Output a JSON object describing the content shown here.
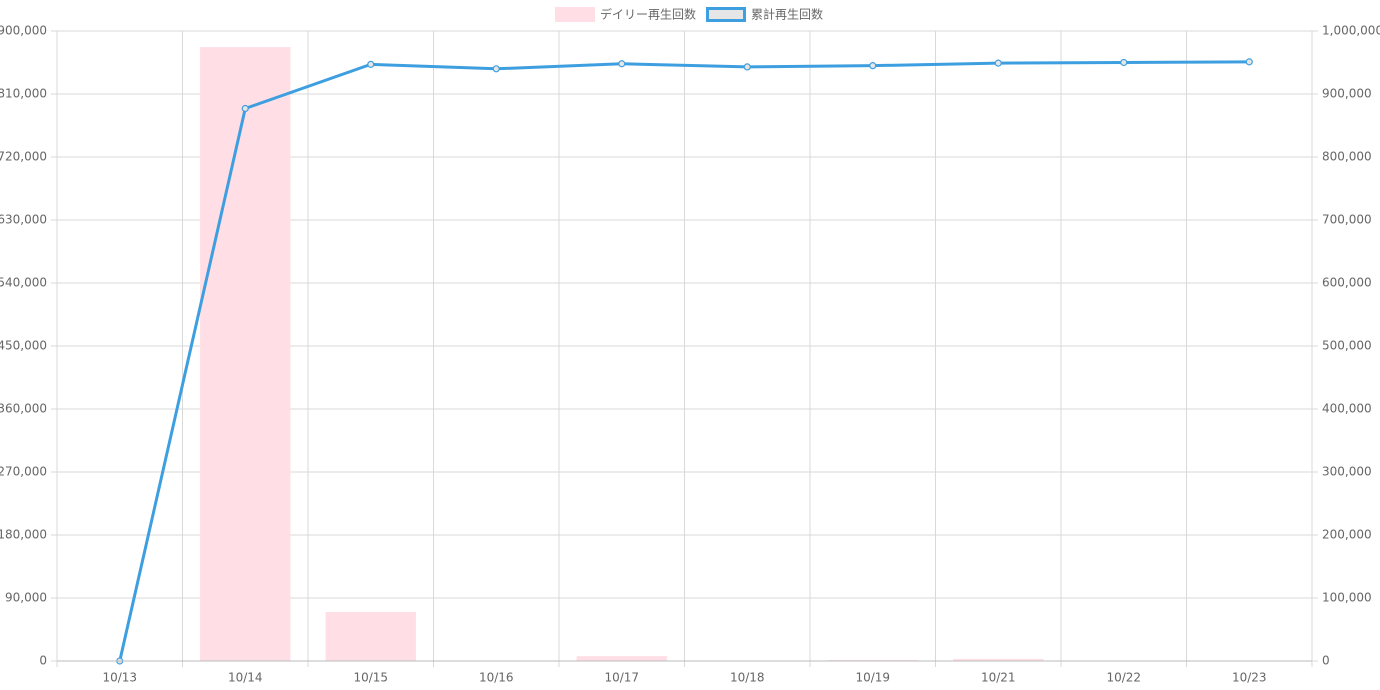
{
  "chart_data": {
    "type": "combo",
    "categories": [
      "10/13",
      "10/14",
      "10/15",
      "10/16",
      "10/17",
      "10/18",
      "10/19",
      "10/21",
      "10/22",
      "10/23"
    ],
    "series": [
      {
        "name": "デイリー再生回数",
        "type": "bar",
        "color": "#ffdfe5",
        "values": [
          0,
          877000,
          70000,
          0,
          7000,
          0,
          1500,
          3000,
          500,
          0
        ]
      },
      {
        "name": "累計再生回数",
        "type": "line",
        "axis": "y2",
        "color": "#3e9fe0",
        "values": [
          0,
          877000,
          947000,
          940000,
          948000,
          943000,
          945000,
          949000,
          950000,
          951000
        ]
      }
    ],
    "ylim": [
      0,
      900000
    ],
    "yticks": [
      0,
      {
        "value": 90000,
        "label": "90,000"
      },
      {
        "value": 180000,
        "label": "180,000"
      },
      {
        "value": 270000,
        "label": "270,000"
      },
      {
        "value": 360000,
        "label": "360,000"
      },
      {
        "value": 450000,
        "label": "450,000"
      },
      {
        "value": 540000,
        "label": "540,000"
      },
      {
        "value": 630000,
        "label": "630,000"
      },
      {
        "value": 720000,
        "label": "720,000"
      },
      {
        "value": 810000,
        "label": "810,000"
      },
      {
        "value": 900000,
        "label": "900,000"
      }
    ],
    "y2lim": [
      0,
      1000000
    ],
    "y2ticks": [
      0,
      {
        "value": 100000,
        "label": "100,000"
      },
      {
        "value": 200000,
        "label": "200,000"
      },
      {
        "value": 300000,
        "label": "300,000"
      },
      {
        "value": 400000,
        "label": "400,000"
      },
      {
        "value": 500000,
        "label": "500,000"
      },
      {
        "value": 600000,
        "label": "600,000"
      },
      {
        "value": 700000,
        "label": "700,000"
      },
      {
        "value": 800000,
        "label": "800,000"
      },
      {
        "value": 900000,
        "label": "900,000"
      },
      {
        "value": 1000000,
        "label": "1,000,000"
      }
    ],
    "grid": true,
    "legend": "top"
  }
}
